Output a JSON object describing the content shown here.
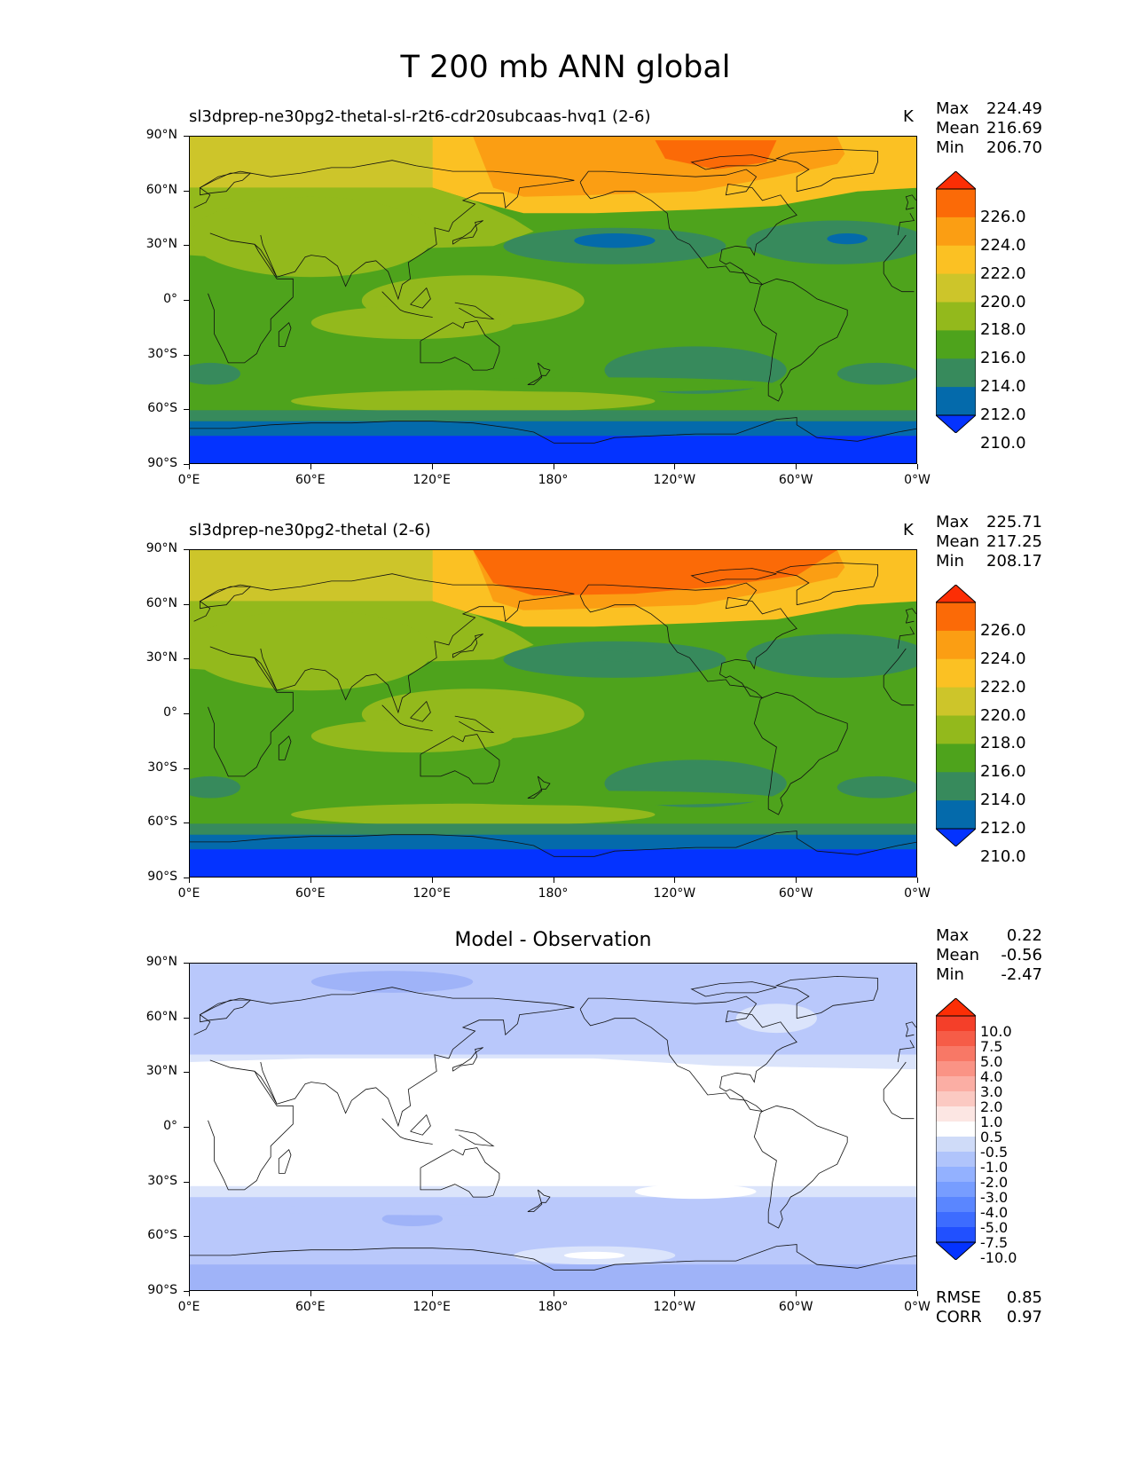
{
  "figure": {
    "title": "T 200 mb ANN global"
  },
  "axes": {
    "lat_ticks": [
      "90°N",
      "60°N",
      "30°N",
      "0°",
      "30°S",
      "60°S",
      "90°S"
    ],
    "lon_ticks": [
      "0°E",
      "60°E",
      "120°E",
      "180°",
      "120°W",
      "60°W",
      "0°W"
    ]
  },
  "panels": [
    {
      "title": "sl3dprep-ne30pg2-thetal-sl-r2t6-cdr20subcaas-hvq1 (2-6)",
      "units": "K",
      "stats": [
        {
          "label": "Max",
          "value": "224.49"
        },
        {
          "label": "Mean",
          "value": "216.69"
        },
        {
          "label": "Min",
          "value": "206.70"
        }
      ],
      "colorbar_labels": [
        "226.0",
        "224.0",
        "222.0",
        "220.0",
        "218.0",
        "216.0",
        "214.0",
        "212.0",
        "210.0"
      ]
    },
    {
      "title": "sl3dprep-ne30pg2-thetal (2-6)",
      "units": "K",
      "stats": [
        {
          "label": "Max",
          "value": "225.71"
        },
        {
          "label": "Mean",
          "value": "217.25"
        },
        {
          "label": "Min",
          "value": "208.17"
        }
      ],
      "colorbar_labels": [
        "226.0",
        "224.0",
        "222.0",
        "220.0",
        "218.0",
        "216.0",
        "214.0",
        "212.0",
        "210.0"
      ]
    },
    {
      "title": "Model - Observation",
      "units": "",
      "stats": [
        {
          "label": "Max",
          "value": "0.22"
        },
        {
          "label": "Mean",
          "value": "-0.56"
        },
        {
          "label": "Min",
          "value": "-2.47"
        }
      ],
      "colorbar_labels": [
        "10.0",
        "7.5",
        "5.0",
        "4.0",
        "3.0",
        "2.0",
        "1.0",
        "0.5",
        "-0.5",
        "-1.0",
        "-2.0",
        "-3.0",
        "-4.0",
        "-5.0",
        "-7.5",
        "-10.0"
      ],
      "extra_stats": [
        {
          "label": "RMSE",
          "value": "0.85"
        },
        {
          "label": "CORR",
          "value": "0.97"
        }
      ]
    }
  ],
  "chart_data": [
    {
      "type": "heatmap",
      "title": "sl3dprep-ne30pg2-thetal-sl-r2t6-cdr20subcaas-hvq1 (2-6)",
      "variable": "T 200 mb ANN global",
      "units": "K",
      "x_range": [
        0,
        360
      ],
      "y_range": [
        -90,
        90
      ],
      "contour_levels": [
        210,
        212,
        214,
        216,
        218,
        220,
        222,
        224,
        226
      ],
      "colors": [
        "#0433ff",
        "#046aab",
        "#378a5c",
        "#4ea31c",
        "#93b91c",
        "#cdc52a",
        "#fbc123",
        "#fb9e13",
        "#fb6a07",
        "#fc2e05"
      ],
      "max": 224.49,
      "mean": 216.69,
      "min": 206.7
    },
    {
      "type": "heatmap",
      "title": "sl3dprep-ne30pg2-thetal (2-6)",
      "variable": "T 200 mb ANN global",
      "units": "K",
      "x_range": [
        0,
        360
      ],
      "y_range": [
        -90,
        90
      ],
      "contour_levels": [
        210,
        212,
        214,
        216,
        218,
        220,
        222,
        224,
        226
      ],
      "colors": [
        "#0433ff",
        "#046aab",
        "#378a5c",
        "#4ea31c",
        "#93b91c",
        "#cdc52a",
        "#fbc123",
        "#fb9e13",
        "#fb6a07",
        "#fc2e05"
      ],
      "max": 225.71,
      "mean": 217.25,
      "min": 208.17
    },
    {
      "type": "heatmap",
      "title": "Model - Observation",
      "x_range": [
        0,
        360
      ],
      "y_range": [
        -90,
        90
      ],
      "contour_levels": [
        -10,
        -7.5,
        -5,
        -4,
        -3,
        -2,
        -1,
        -0.5,
        0.5,
        1,
        2,
        3,
        4,
        5,
        7.5,
        10
      ],
      "colors": [
        "#0433ff",
        "#2150ff",
        "#3d6cff",
        "#5a86ff",
        "#779dff",
        "#93b1ff",
        "#b0c4fb",
        "#cfdbf8",
        "#ffffff",
        "#fce6e3",
        "#fbc9c2",
        "#fbaea4",
        "#fa9385",
        "#f87866",
        "#f65c47",
        "#f43f29",
        "#fc2e05"
      ],
      "max": 0.22,
      "mean": -0.56,
      "min": -2.47,
      "rmse": 0.85,
      "corr": 0.97
    }
  ]
}
